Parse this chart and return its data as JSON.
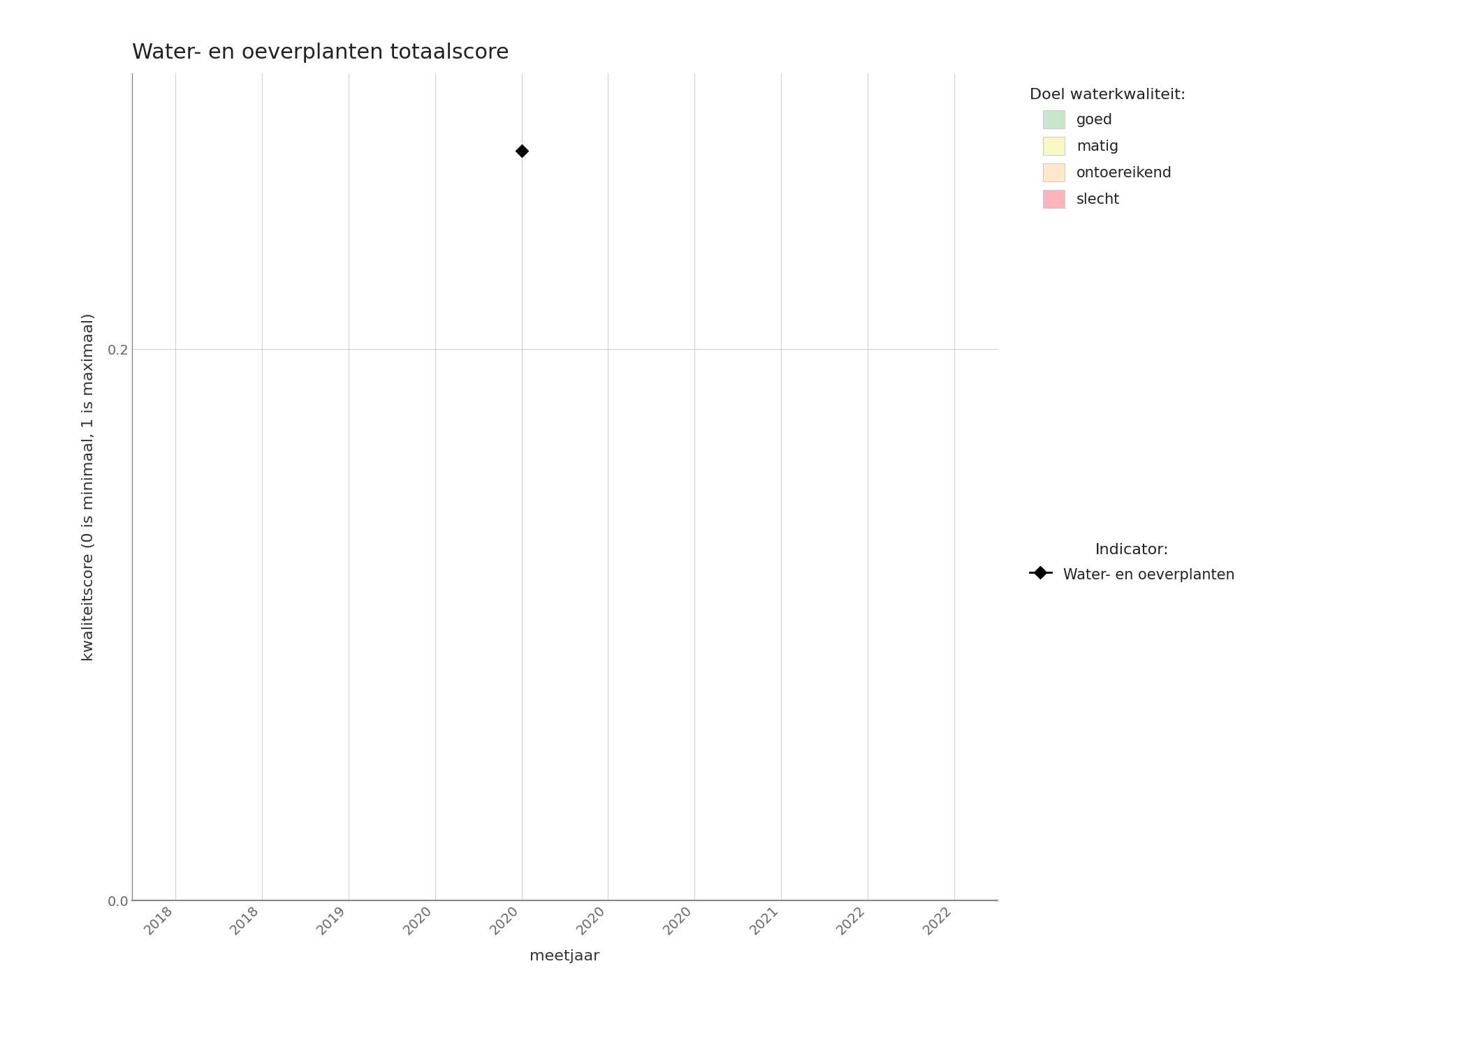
{
  "title": "Water- en oeverplanten totaalscore",
  "xlabel": "meetjaar",
  "ylabel": "kwaliteitscore (0 is minimaal, 1 is maximaal)",
  "xlim": [
    2017.5,
    2022.5
  ],
  "ylim": [
    0.0,
    0.3
  ],
  "yticks": [
    0.0,
    0.2
  ],
  "ytick_labels": [
    "0.0",
    "0.2"
  ],
  "xticks": [
    2017.75,
    2018.25,
    2018.75,
    2019.25,
    2019.75,
    2020.25,
    2020.75,
    2021.25,
    2021.75,
    2022.25
  ],
  "xtick_labels": [
    "2018",
    "2018",
    "2019",
    "2020",
    "2020",
    "2020",
    "2020",
    "2021",
    "2022",
    "2022"
  ],
  "data_x": [
    2019.75
  ],
  "data_y": [
    0.272
  ],
  "data_color": "#000000",
  "legend_quality_title": "Doel waterkwaliteit:",
  "legend_quality_items": [
    {
      "label": "goed",
      "color": "#c8e6c9"
    },
    {
      "label": "matig",
      "color": "#f9f9c5"
    },
    {
      "label": "ontoereikend",
      "color": "#fde9c7"
    },
    {
      "label": "slecht",
      "color": "#ffb3ba"
    }
  ],
  "legend_indicator_title": "Indicator:",
  "legend_indicator_label": "Water- en oeverplanten",
  "background_color": "#ffffff",
  "plot_bg_color": "#ffffff",
  "grid_color": "#d0d0d0",
  "title_fontsize": 22,
  "axis_label_fontsize": 16,
  "tick_fontsize": 14,
  "legend_fontsize": 15,
  "legend_title_fontsize": 16
}
